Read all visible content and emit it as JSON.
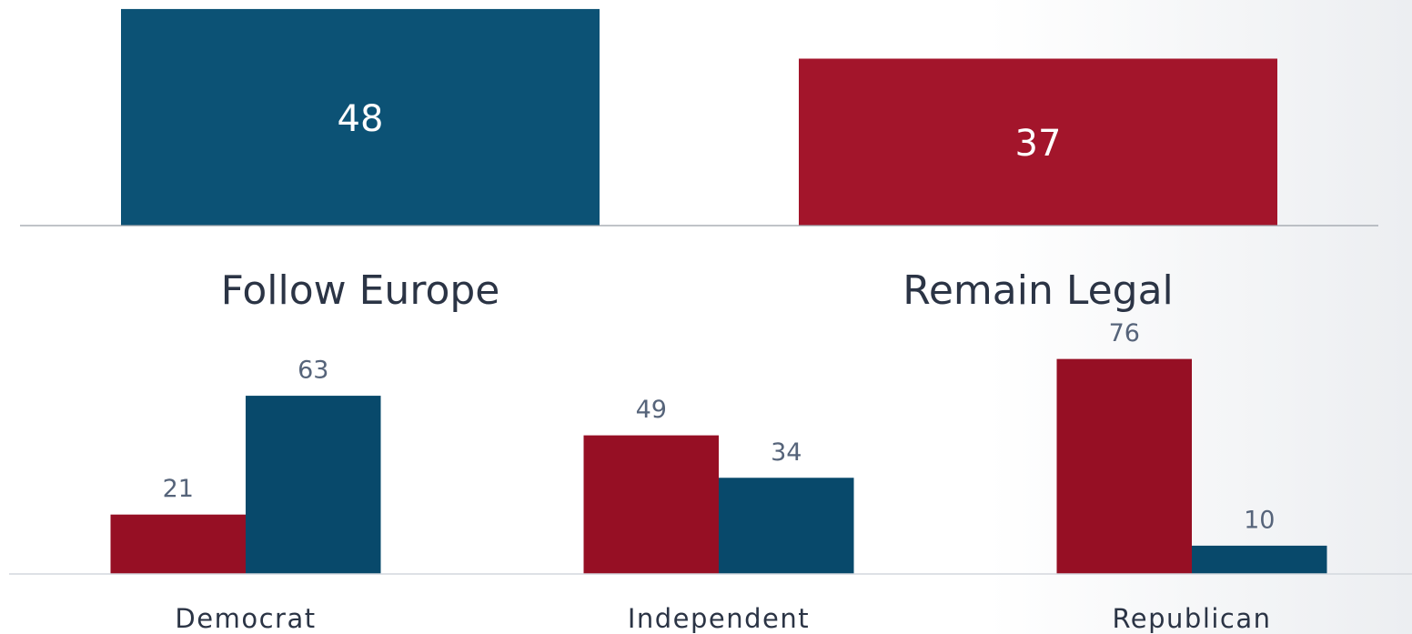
{
  "chart_data": [
    {
      "type": "bar",
      "categories": [
        "Follow Europe",
        "Remain Legal"
      ],
      "values": [
        48,
        37
      ],
      "colors": [
        "#0c5275",
        "#a3152b"
      ]
    },
    {
      "type": "grouped_bar",
      "categories": [
        "Democrat",
        "Independent",
        "Republican"
      ],
      "series": [
        {
          "color": "#960f24",
          "values": [
            21,
            49,
            76
          ]
        },
        {
          "color": "#08496b",
          "values": [
            63,
            34,
            10
          ]
        }
      ]
    }
  ]
}
